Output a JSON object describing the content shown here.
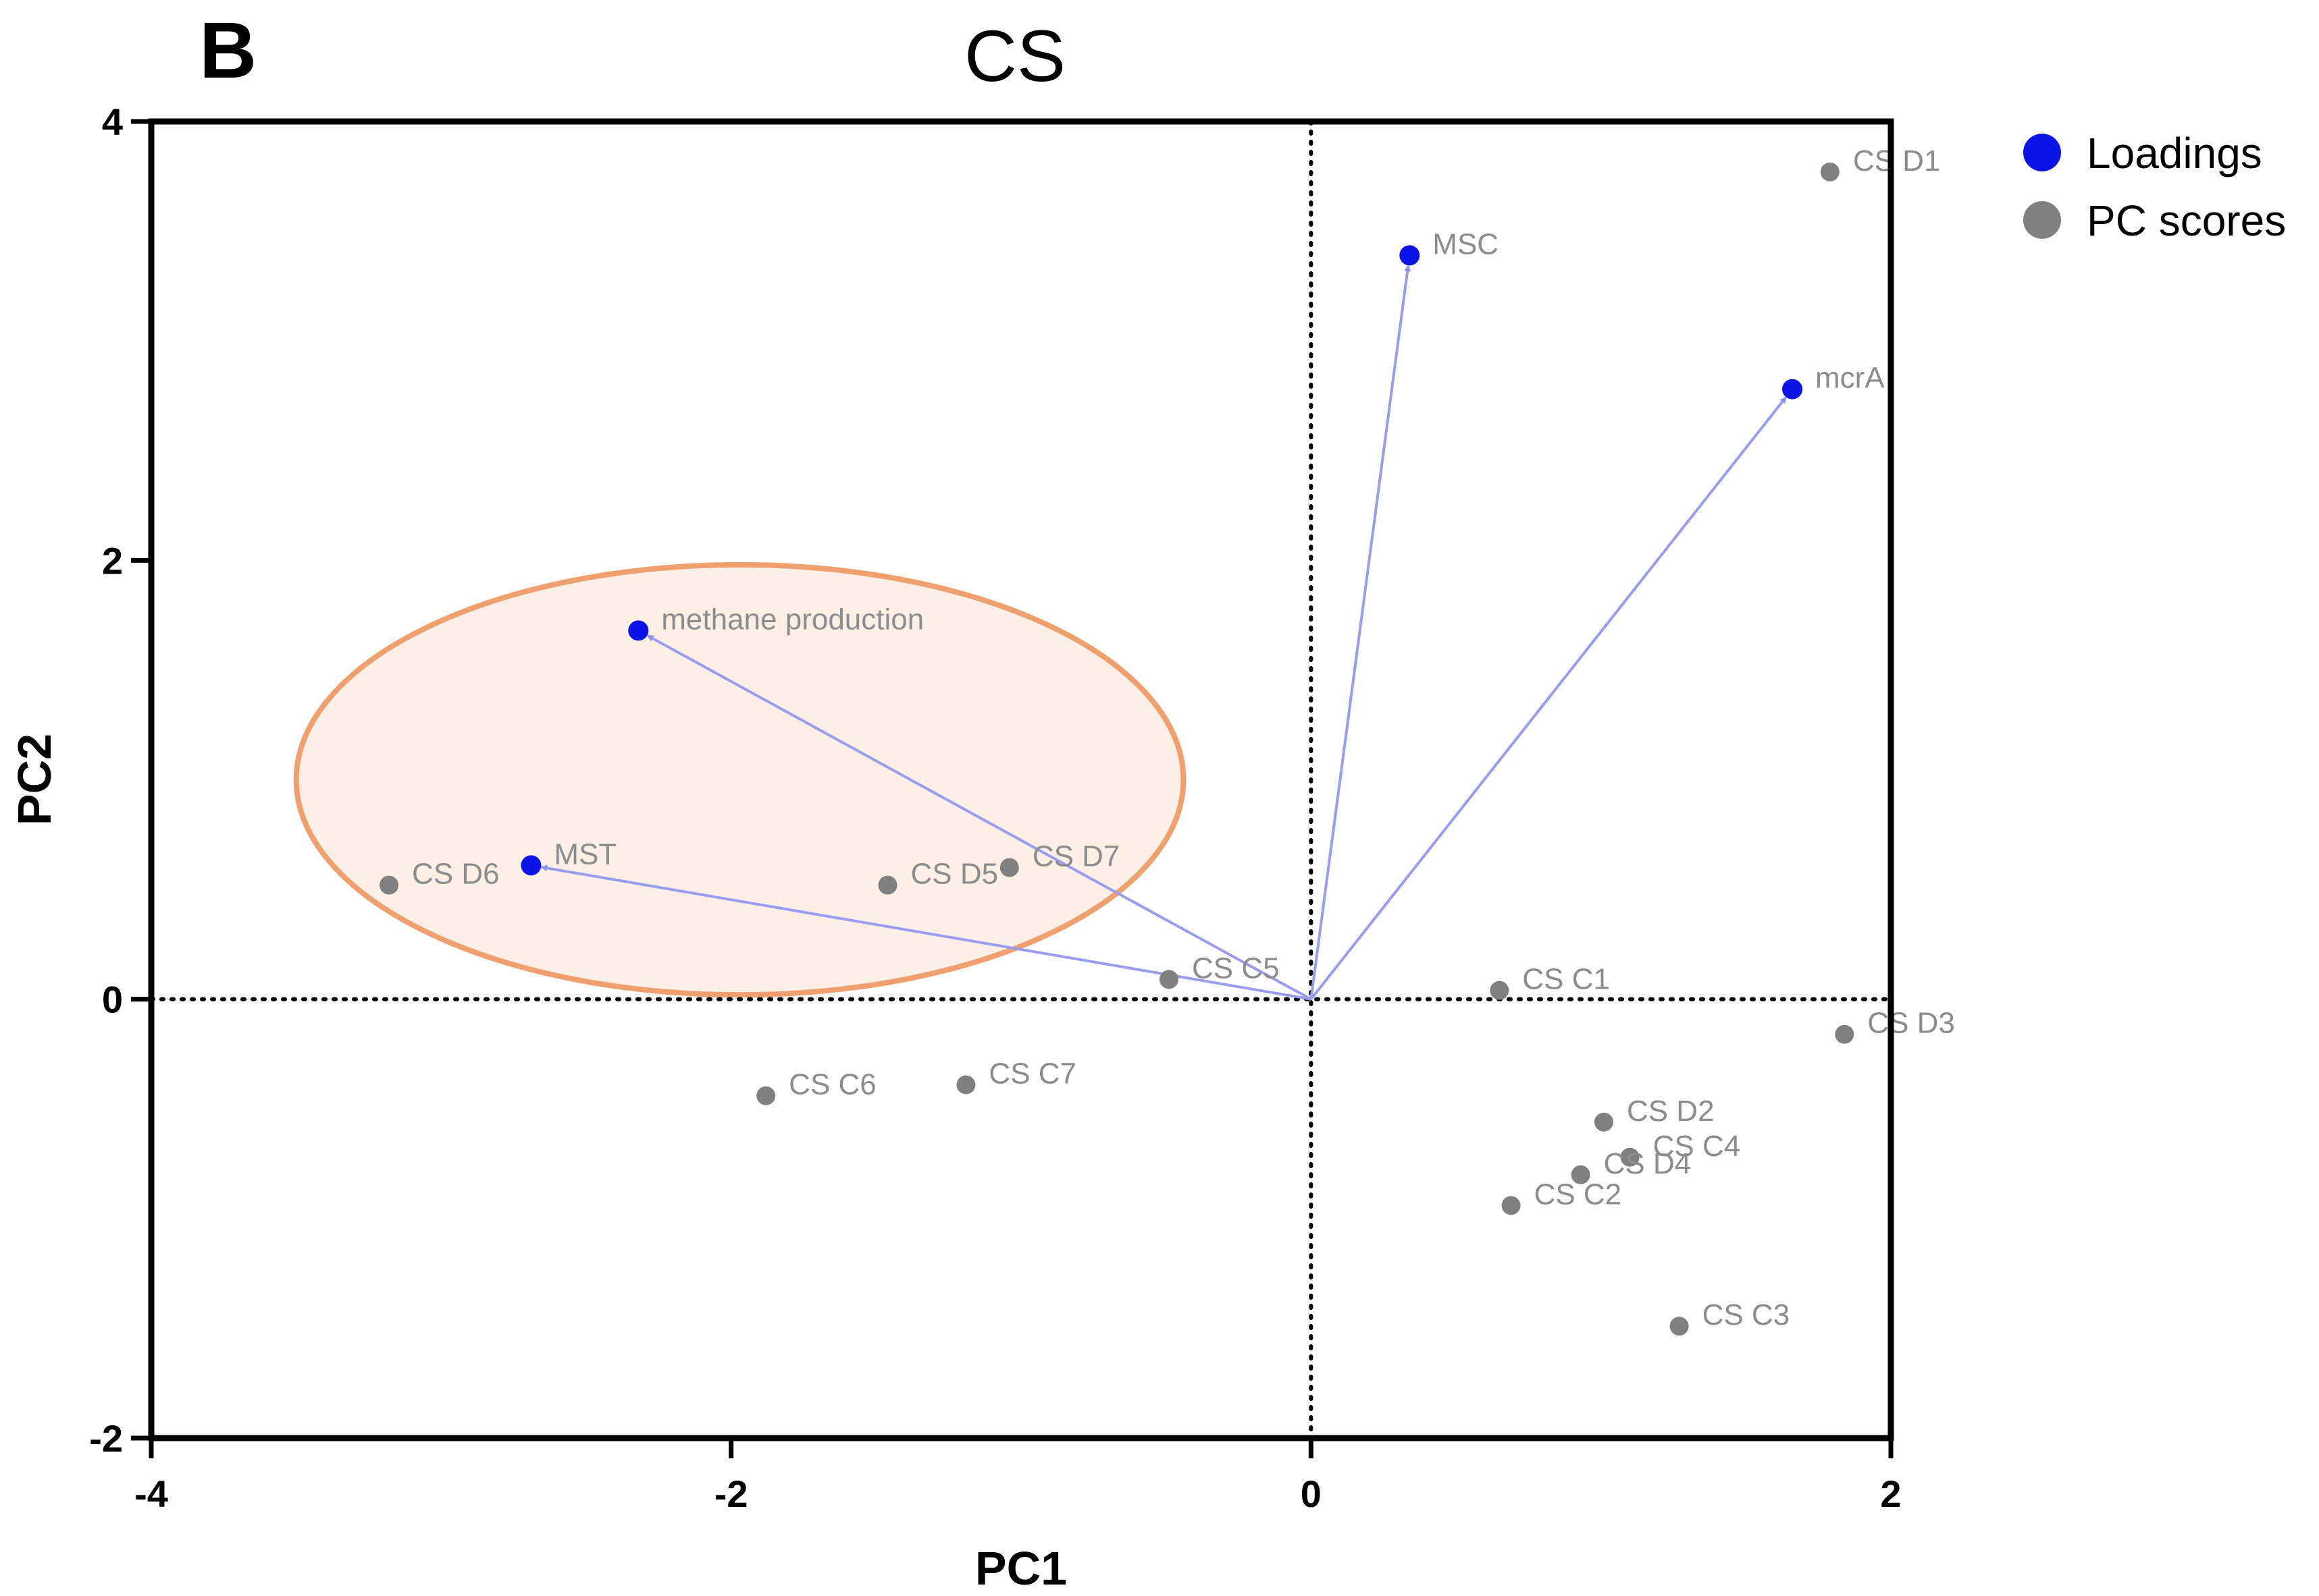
{
  "panel_letter": "B",
  "chart_data": {
    "type": "scatter",
    "title": "CS",
    "xlabel": "PC1",
    "ylabel": "PC2",
    "xlim": [
      -4,
      2
    ],
    "ylim": [
      -2,
      4
    ],
    "xticks": [
      -4,
      -2,
      0,
      2
    ],
    "yticks": [
      -2,
      0,
      2,
      4
    ],
    "grid": false,
    "zero_lines": true,
    "legend": {
      "placement": "top-right outside",
      "entries": [
        {
          "name": "Loadings",
          "color": "#0a14e6"
        },
        {
          "name": "PC scores",
          "color": "#808080"
        }
      ]
    },
    "series": [
      {
        "name": "Loadings",
        "color": "#0a14e6",
        "arrow_color": "#9a9cf0",
        "points": [
          {
            "label": "MSC",
            "x": 0.34,
            "y": 3.39
          },
          {
            "label": "mcrA",
            "x": 1.66,
            "y": 2.78
          },
          {
            "label": "methane production",
            "x": -2.32,
            "y": 1.68
          },
          {
            "label": "MST",
            "x": -2.69,
            "y": 0.61
          }
        ]
      },
      {
        "name": "PC scores",
        "color": "#808080",
        "points": [
          {
            "label": "CS D1",
            "x": 1.79,
            "y": 3.77
          },
          {
            "label": "CS D6",
            "x": -3.18,
            "y": 0.52
          },
          {
            "label": "CS D5",
            "x": -1.46,
            "y": 0.52
          },
          {
            "label": "CS D7",
            "x": -1.04,
            "y": 0.6
          },
          {
            "label": "CS C5",
            "x": -0.49,
            "y": 0.09
          },
          {
            "label": "CS C1",
            "x": 0.65,
            "y": 0.04
          },
          {
            "label": "CS D3",
            "x": 1.84,
            "y": -0.16
          },
          {
            "label": "CS C6",
            "x": -1.88,
            "y": -0.44
          },
          {
            "label": "CS C7",
            "x": -1.19,
            "y": -0.39
          },
          {
            "label": "CS D2",
            "x": 1.01,
            "y": -0.56
          },
          {
            "label": "CS C4",
            "x": 1.1,
            "y": -0.72
          },
          {
            "label": "CS D4",
            "x": 0.93,
            "y": -0.8
          },
          {
            "label": "CS C2",
            "x": 0.69,
            "y": -0.94
          },
          {
            "label": "CS C3",
            "x": 1.27,
            "y": -1.49
          }
        ]
      }
    ],
    "highlight_ellipse": {
      "center": [
        -1.97,
        1.0
      ],
      "radius_x": 1.53,
      "radius_y": 0.98,
      "stroke": "#f0a06e",
      "fill": "#fcefe6"
    }
  }
}
